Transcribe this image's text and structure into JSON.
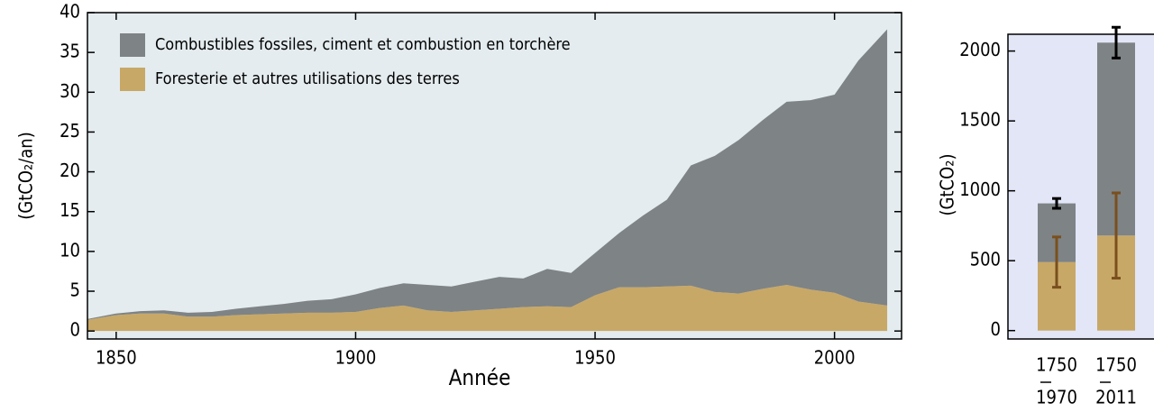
{
  "chart_data": [
    {
      "type": "area",
      "stacked": true,
      "ylabel": "(GtCO₂/an)",
      "xlabel": "Année",
      "x": [
        1844,
        1850,
        1855,
        1860,
        1865,
        1870,
        1875,
        1880,
        1885,
        1890,
        1895,
        1900,
        1905,
        1910,
        1915,
        1920,
        1925,
        1930,
        1935,
        1940,
        1945,
        1950,
        1955,
        1960,
        1965,
        1970,
        1975,
        1980,
        1985,
        1990,
        1995,
        2000,
        2005,
        2011
      ],
      "series": [
        {
          "name": "Foresterie et autres utilisations des terres",
          "color": "#c8a867",
          "values": [
            1.4,
            2.0,
            2.2,
            2.2,
            1.8,
            1.8,
            2.0,
            2.1,
            2.2,
            2.3,
            2.3,
            2.4,
            2.9,
            3.2,
            2.6,
            2.4,
            2.6,
            2.8,
            3.0,
            3.1,
            3.0,
            4.5,
            5.5,
            5.5,
            5.6,
            5.7,
            4.9,
            4.7,
            5.3,
            5.8,
            5.2,
            4.8,
            3.7,
            3.2
          ]
        },
        {
          "name": "Combustibles fossiles, ciment et combustion en torchère",
          "color": "#7e8385",
          "values": [
            0.1,
            0.2,
            0.3,
            0.4,
            0.5,
            0.6,
            0.8,
            1.0,
            1.2,
            1.5,
            1.7,
            2.2,
            2.5,
            2.8,
            3.2,
            3.2,
            3.6,
            4.0,
            3.6,
            4.7,
            4.3,
            5.3,
            6.8,
            9.0,
            10.9,
            15.1,
            17.1,
            19.3,
            21.2,
            23.0,
            23.8,
            24.9,
            30.3,
            34.7
          ]
        }
      ],
      "xlim": [
        1844,
        2014
      ],
      "xticks": [
        1850,
        1900,
        1950,
        2000
      ],
      "ylim": [
        -1,
        40
      ],
      "yticks": [
        0,
        5,
        10,
        15,
        20,
        25,
        30,
        35,
        40
      ],
      "legend": "upper left",
      "background": "#e4ecef"
    },
    {
      "type": "bar",
      "stacked": true,
      "ylabel": "(GtCO₂)",
      "categories": [
        [
          "1750",
          "1970"
        ],
        [
          "1750",
          "2011"
        ]
      ],
      "series": [
        {
          "name": "Foresterie et autres utilisations des terres",
          "color": "#c8a867",
          "error_color": "#7a4f1e",
          "values": [
            490,
            680
          ],
          "errors": [
            180,
            305
          ]
        },
        {
          "name": "Combustibles fossiles, ciment et combustion en torchère",
          "color": "#7e8385",
          "error_color": "#000000",
          "values": [
            420,
            1380
          ],
          "errors": [
            35,
            110
          ]
        }
      ],
      "ylim": [
        -60,
        2120
      ],
      "yticks": [
        0,
        500,
        1000,
        1500,
        2000
      ],
      "background": "#e3e6f7"
    }
  ]
}
